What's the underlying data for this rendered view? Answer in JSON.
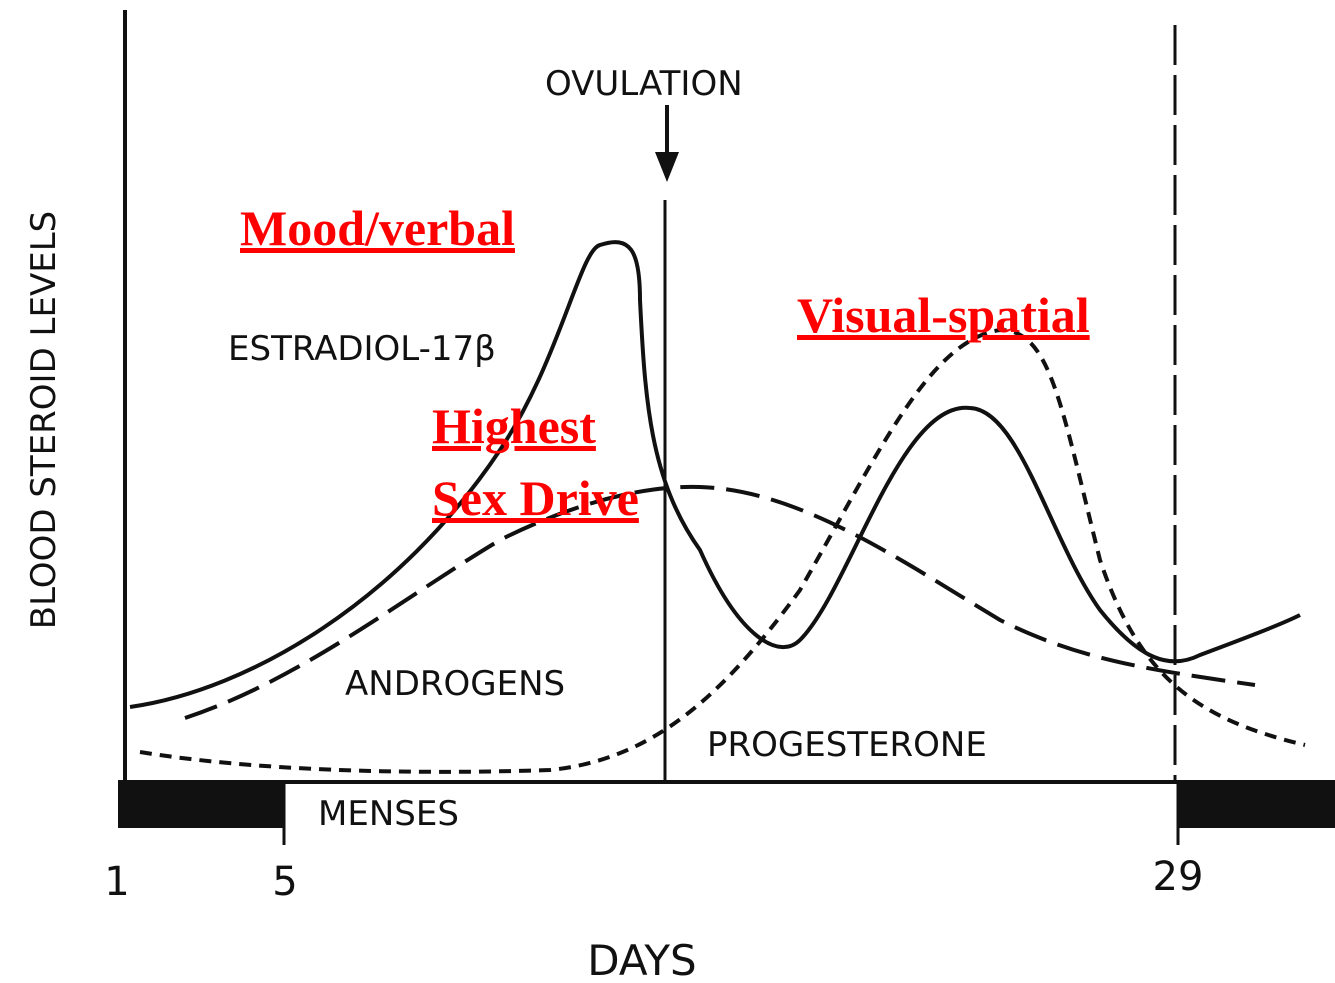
{
  "y_axis_label": "BLOOD STEROID LEVELS",
  "x_axis_label": "DAYS",
  "x_ticks": [
    "1",
    "5",
    "29"
  ],
  "markers": {
    "ovulation": "OVULATION",
    "menses": "MENSES"
  },
  "curves": [
    "ESTRADIOL-17β",
    "ANDROGENS",
    "PROGESTERONE"
  ],
  "annotations": [
    "Mood/verbal",
    "Highest",
    "Sex Drive",
    "Visual-spatial"
  ]
}
